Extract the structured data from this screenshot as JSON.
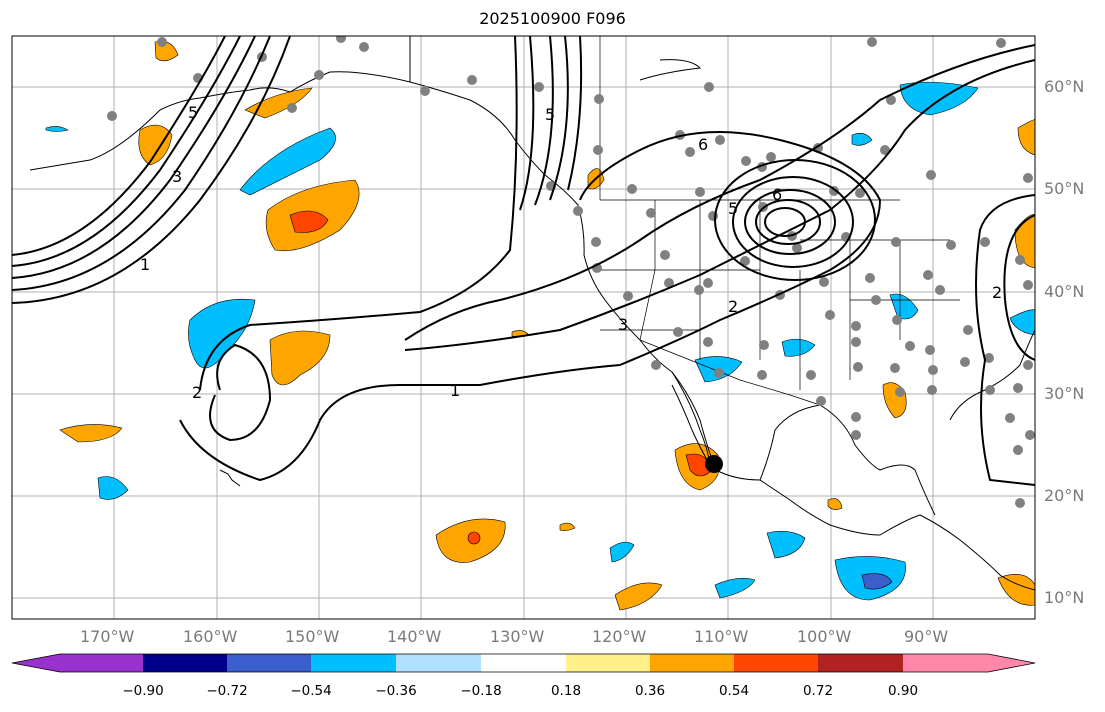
{
  "title": "2025100900 F096",
  "lon_labels": [
    "170°W",
    "160°W",
    "150°W",
    "140°W",
    "130°W",
    "120°W",
    "110°W",
    "100°W",
    "90°W"
  ],
  "lat_labels": [
    "60°N",
    "50°N",
    "40°N",
    "30°N",
    "20°N",
    "10°N"
  ],
  "contour_labels": [
    "1",
    "1",
    "2",
    "2",
    "2",
    "3",
    "3",
    "5",
    "5",
    "5",
    "6",
    "6"
  ],
  "colorbar": {
    "ticks": [
      "−0.90",
      "−0.72",
      "−0.54",
      "−0.36",
      "−0.18",
      "0.18",
      "0.36",
      "0.54",
      "0.72",
      "0.90"
    ],
    "colors": [
      "#9932cc",
      "#00008b",
      "#3a5fcd",
      "#00bfff",
      "#b0e2ff",
      "#ffffff",
      "#fff08a",
      "#ffa500",
      "#ff4500",
      "#b22222",
      "#ff88aa"
    ]
  }
}
